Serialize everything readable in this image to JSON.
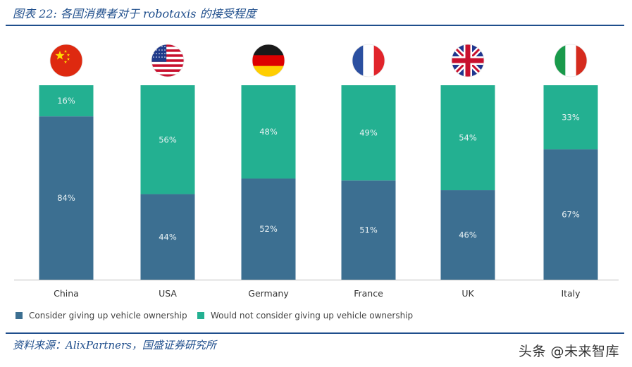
{
  "header": {
    "title": "图表 22: 各国消费者对于 robotaxis 的接受程度"
  },
  "footer": {
    "source": "资料来源：AlixPartners，国盛证券研究所",
    "watermark": "头条 @未来智库"
  },
  "colors": {
    "consider": "#3c6f91",
    "would_not": "#23b091",
    "axis": "#bbbbbb",
    "accent": "#1f4e8c"
  },
  "chart_data": {
    "type": "bar",
    "stacked": true,
    "categories": [
      "China",
      "USA",
      "Germany",
      "France",
      "UK",
      "Italy"
    ],
    "flags": [
      "china-flag",
      "usa-flag",
      "germany-flag",
      "france-flag",
      "uk-flag",
      "italy-flag"
    ],
    "series": [
      {
        "name": "Consider giving up vehicle ownership",
        "values": [
          84,
          44,
          52,
          51,
          46,
          67
        ],
        "labels": [
          "84%",
          "44%",
          "52%",
          "51%",
          "46%",
          "67%"
        ]
      },
      {
        "name": "Would not consider giving up vehicle ownership",
        "values": [
          16,
          56,
          48,
          49,
          54,
          33
        ],
        "labels": [
          "16%",
          "56%",
          "48%",
          "49%",
          "54%",
          "33%"
        ]
      }
    ],
    "ylim": [
      0,
      100
    ],
    "legend": "bottom-left"
  }
}
